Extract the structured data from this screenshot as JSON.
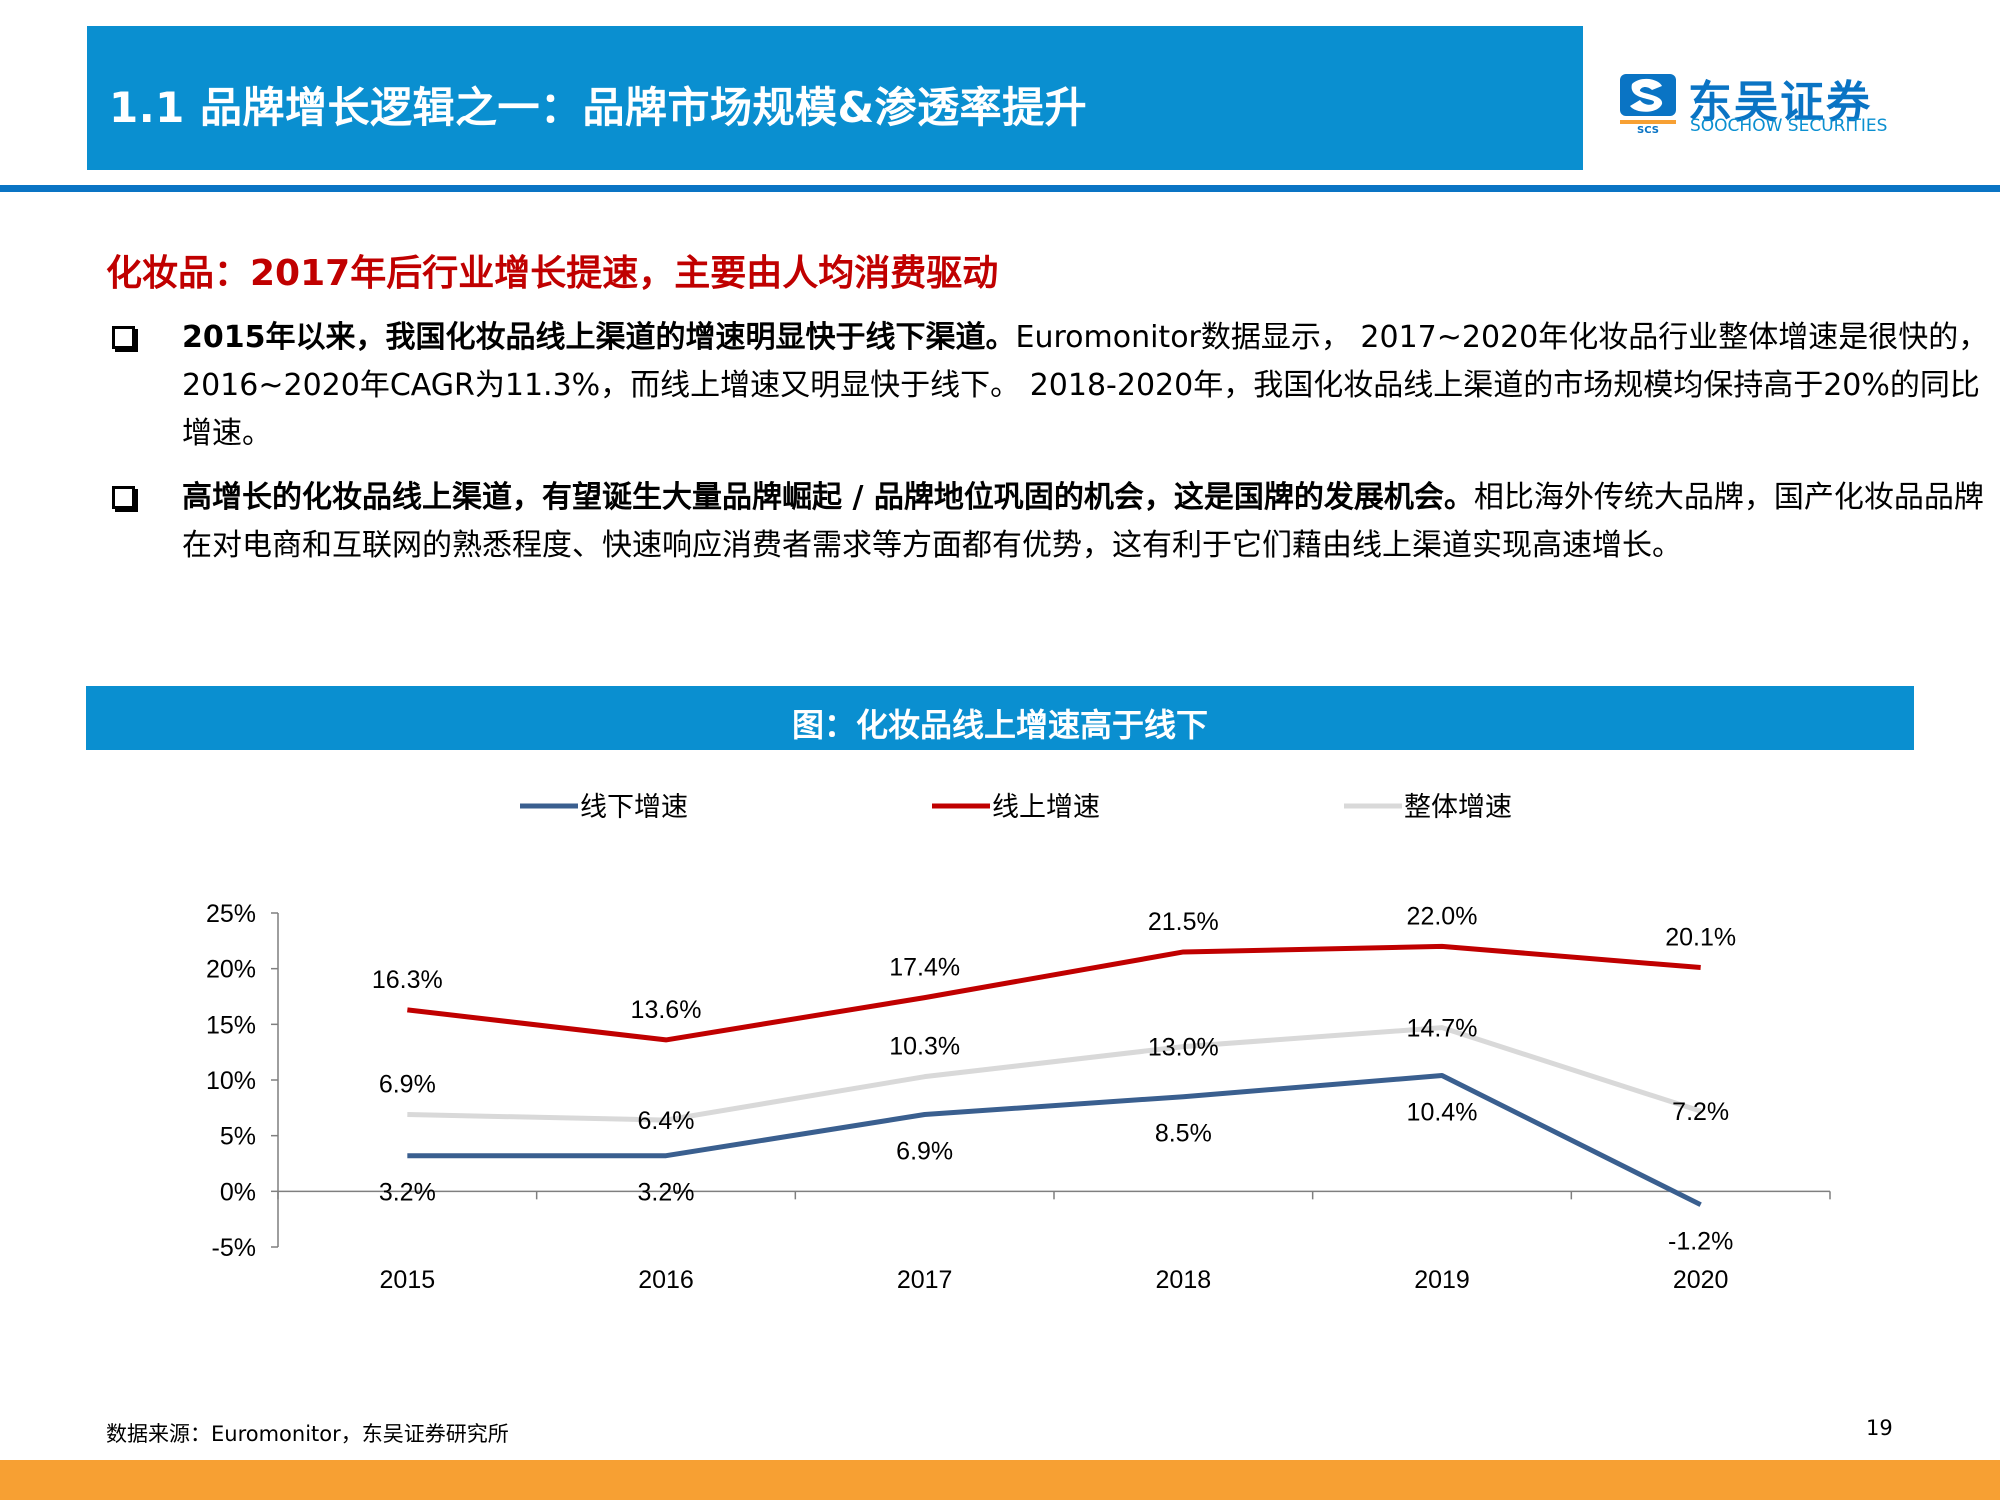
{
  "header": {
    "title": "1.1 品牌增长逻辑之一：品牌市场规模&渗透率提升"
  },
  "logo": {
    "name_cn": "东吴证券",
    "name_en": "SOOCHOW SECURITIES",
    "mark_text": "SCS",
    "brand_color": "#0a74c4"
  },
  "subtitle": "化妆品：2017年后行业增长提速，主要由人均消费驱动",
  "bullets": [
    {
      "bold": "2015年以来，我国化妆品线上渠道的增速明显快于线下渠道。",
      "rest": "Euromonitor数据显示， 2017~2020年化妆品行业整体增速是很快的，2016~2020年CAGR为11.3%，而线上增速又明显快于线下。 2018-2020年，我国化妆品线上渠道的市场规模均保持高于20%的同比增速。"
    },
    {
      "bold": "高增长的化妆品线上渠道，有望诞生大量品牌崛起 / 品牌地位巩固的机会，这是国牌的发展机会。",
      "rest": "相比海外传统大品牌，国产化妆品品牌在对电商和互联网的熟悉程度、快速响应消费者需求等方面都有优势，这有利于它们藉由线上渠道实现高速增长。"
    }
  ],
  "chart_caption": "图：化妆品线上增速高于线下",
  "chart_data": {
    "type": "line",
    "categories": [
      "2015",
      "2016",
      "2017",
      "2018",
      "2019",
      "2020"
    ],
    "series": [
      {
        "name": "线下增速",
        "values": [
          3.2,
          3.2,
          6.9,
          8.5,
          10.4,
          -1.2
        ],
        "labels": [
          "3.2%",
          "3.2%",
          "6.9%",
          "8.5%",
          "10.4%",
          "-1.2%"
        ],
        "color": "#3a5f8f",
        "label_pos": [
          "below",
          "below",
          "below",
          "below",
          "below",
          "below"
        ]
      },
      {
        "name": "线上增速",
        "values": [
          16.3,
          13.6,
          17.4,
          21.5,
          22.0,
          20.1
        ],
        "labels": [
          "16.3%",
          "13.6%",
          "17.4%",
          "21.5%",
          "22.0%",
          "20.1%"
        ],
        "color": "#c00000",
        "label_pos": [
          "above",
          "above",
          "above",
          "above",
          "above",
          "above"
        ]
      },
      {
        "name": "整体增速",
        "values": [
          6.9,
          6.4,
          10.3,
          13.0,
          14.7,
          7.2
        ],
        "labels": [
          "6.9%",
          "6.4%",
          "10.3%",
          "13.0%",
          "14.7%",
          "7.2%"
        ],
        "color": "#d9d9d9",
        "label_pos": [
          "above",
          "on",
          "above",
          "on",
          "on",
          "on"
        ]
      }
    ],
    "y_ticks": [
      "25%",
      "20%",
      "15%",
      "10%",
      "5%",
      "0%",
      "-5%"
    ],
    "ylim": [
      -5,
      25
    ],
    "legend_position": "top",
    "grid": false
  },
  "source_note": "数据来源：Euromonitor，东吴证券研究所",
  "page_number": "19",
  "colors": {
    "title_bar": "#0a8fd0",
    "header_rule": "#0a74c4",
    "subtitle": "#c00000",
    "footer_bar": "#f7a033"
  }
}
